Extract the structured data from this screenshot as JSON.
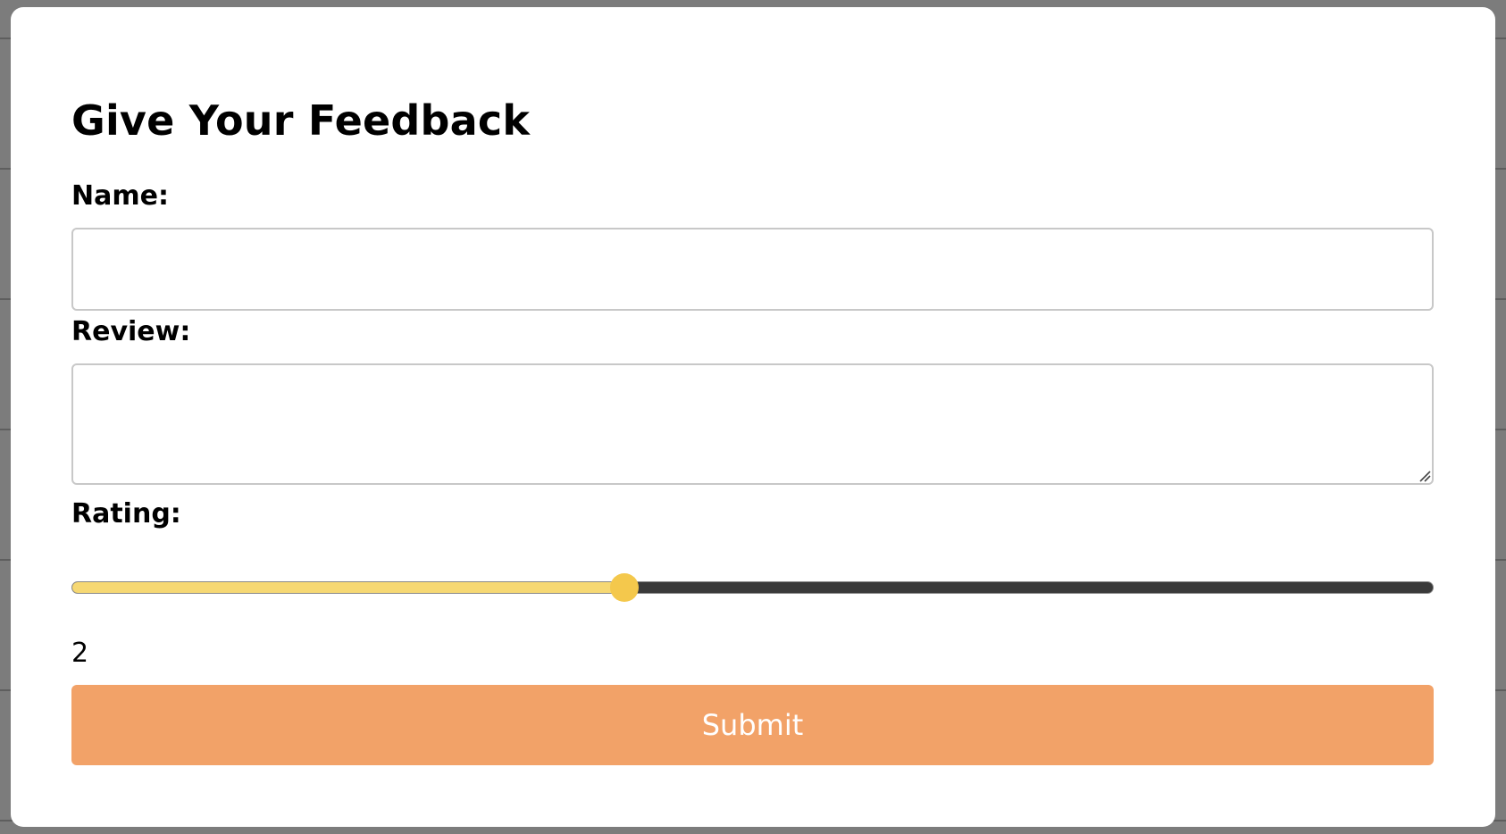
{
  "form": {
    "title": "Give Your Feedback",
    "name_label": "Name:",
    "name_value": "",
    "review_label": "Review:",
    "review_value": "",
    "rating_label": "Rating:",
    "rating_value": "2",
    "rating_fraction": 0.406,
    "submit_label": "Submit"
  },
  "colors": {
    "modal_background": "#ffffff",
    "backdrop": "#7c7c7c",
    "slider_fill": "#f6d873",
    "slider_track": "#3a3a3a",
    "slider_thumb": "#f4c84c",
    "submit_background": "#f2a268",
    "submit_text": "#ffffff"
  },
  "icons": {
    "resize_handle": "resize-grip-icon"
  }
}
